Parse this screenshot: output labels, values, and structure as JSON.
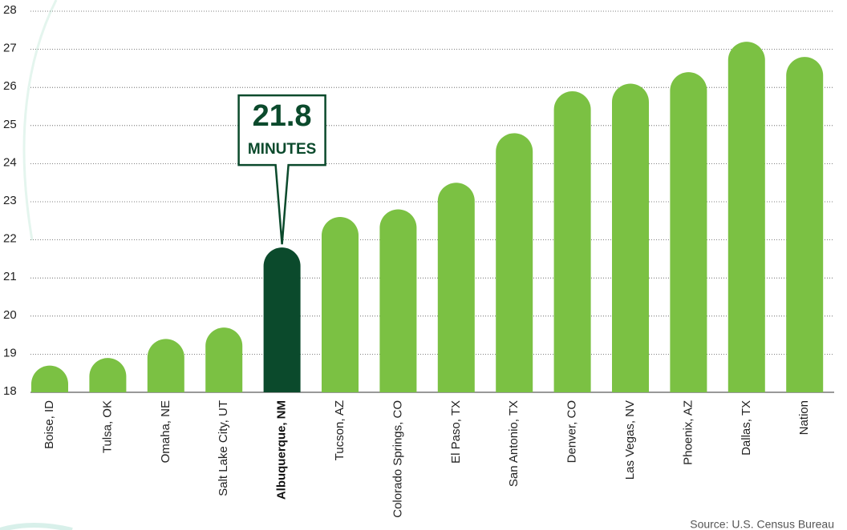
{
  "chart_data": {
    "type": "bar",
    "categories": [
      "Boise, ID",
      "Tulsa, OK",
      "Omaha, NE",
      "Salt  Lake City,  UT",
      "Albuquerque, NM",
      "Tucson, AZ",
      "Colorado Springs,  CO",
      "El Paso, TX",
      "San Antonio, TX",
      "Denver, CO",
      "Las Vegas, NV",
      "Phoenix, AZ",
      "Dallas, TX",
      "Nation"
    ],
    "values": [
      18.7,
      18.9,
      19.4,
      19.7,
      21.8,
      22.6,
      22.8,
      23.5,
      24.8,
      25.9,
      26.1,
      26.4,
      27.2,
      26.8
    ],
    "color": "#7bc143",
    "colors": [
      "#7bc143",
      "#7bc143",
      "#7bc143",
      "#7bc143",
      "#0b4a2c",
      "#7bc143",
      "#7bc143",
      "#7bc143",
      "#7bc143",
      "#7bc143",
      "#7bc143",
      "#7bc143",
      "#7bc143",
      "#7bc143"
    ],
    "annotation": "MINUTES",
    "source": "Source: U.S. Census Bureau",
    "ylim": [
      18,
      28
    ],
    "yticks": [
      18,
      19,
      20,
      21,
      22,
      23,
      24,
      25,
      26,
      27,
      28
    ],
    "grid": true
  }
}
